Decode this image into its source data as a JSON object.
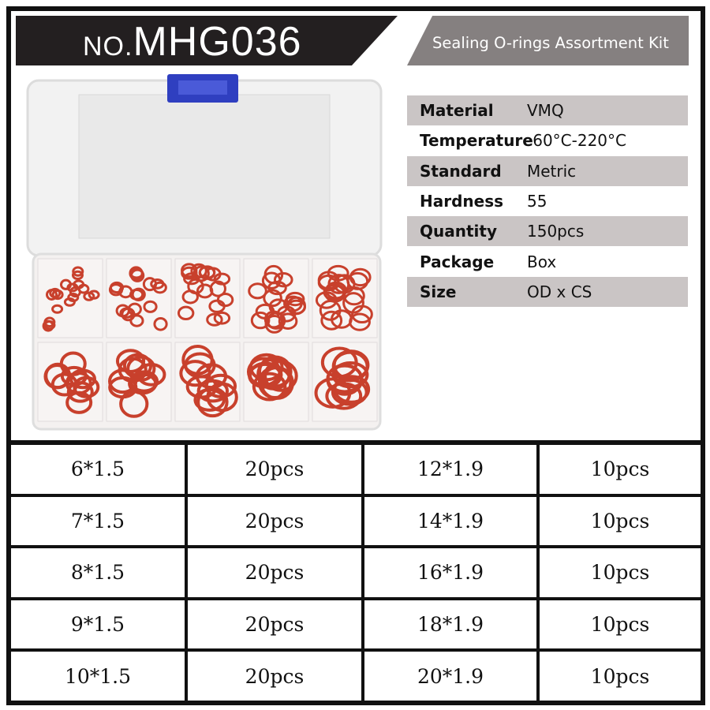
{
  "header": {
    "model_prefix": "NO.",
    "model": "MHG036",
    "subtitle": "Sealing O-rings Assortment Kit"
  },
  "specs": [
    {
      "label": "Material",
      "value": "VMQ"
    },
    {
      "label": "Temperature",
      "value": "-60°C-220°C"
    },
    {
      "label": "Standard",
      "value": "Metric"
    },
    {
      "label": "Hardness",
      "value": "55"
    },
    {
      "label": "Quantity",
      "value": "150pcs"
    },
    {
      "label": "Package",
      "value": "Box"
    },
    {
      "label": "Size",
      "value": "OD x CS"
    }
  ],
  "sizes": [
    {
      "size": "6*1.5",
      "qty": "20pcs",
      "size2": "12*1.9",
      "qty2": "10pcs"
    },
    {
      "size": "7*1.5",
      "qty": "20pcs",
      "size2": "14*1.9",
      "qty2": "10pcs"
    },
    {
      "size": "8*1.5",
      "qty": "20pcs",
      "size2": "16*1.9",
      "qty2": "10pcs"
    },
    {
      "size": "9*1.5",
      "qty": "20pcs",
      "size2": "18*1.9",
      "qty2": "10pcs"
    },
    {
      "size": "10*1.5",
      "qty": "20pcs",
      "size2": "20*1.9",
      "qty2": "10pcs"
    }
  ],
  "colors": {
    "header_black": "#231f20",
    "header_gray": "#858080",
    "spec_stripe": "#cac5c5",
    "ring_red": "#c8402c",
    "clip_blue": "#2f3fc0"
  }
}
